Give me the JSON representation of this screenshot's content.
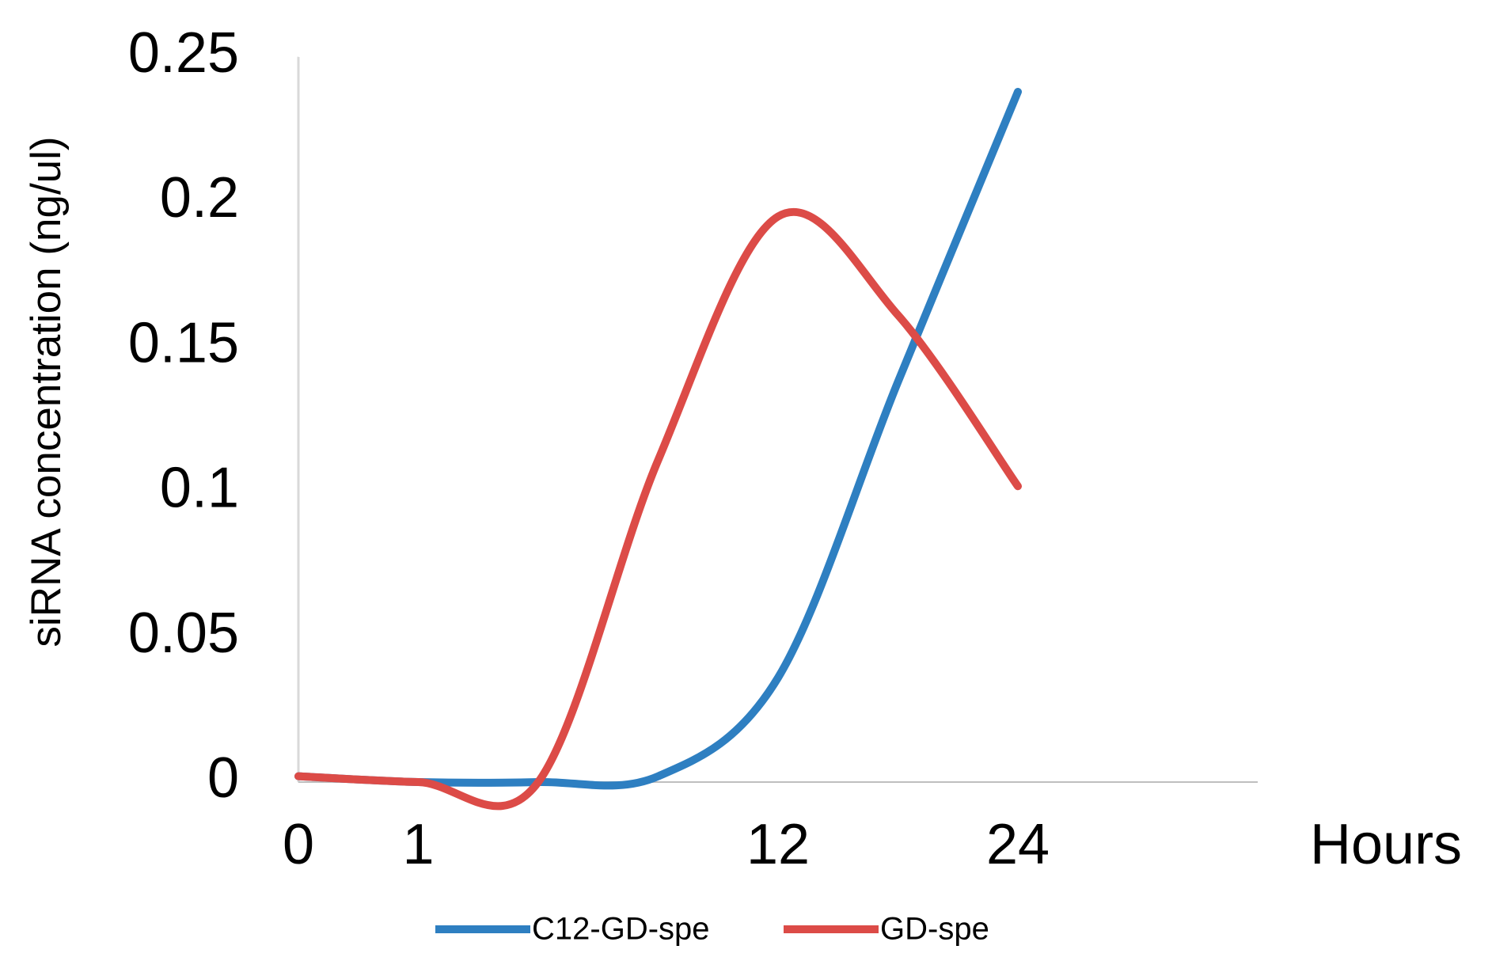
{
  "chart_data": {
    "type": "line",
    "y_label": "siRNA concentration (ng/ul)",
    "x_label": "Hours",
    "categories": [
      "0",
      "1",
      null,
      null,
      "12",
      null,
      "24",
      null
    ],
    "series": [
      {
        "name": "C12-GD-spe",
        "color": "#2e7fc1",
        "values": [
          0.002,
          0,
          0,
          0.002,
          0.036,
          0.138,
          0.238,
          null
        ]
      },
      {
        "name": "GD-spe",
        "color": "#dc4b47",
        "values": [
          0.002,
          0,
          0,
          0.111,
          0.195,
          0.161,
          0.102,
          null
        ]
      }
    ],
    "ylim": [
      0,
      0.25
    ],
    "yticks": [
      0,
      0.05,
      0.1,
      0.15,
      0.2,
      0.25
    ],
    "grid": false,
    "legend": "bottom"
  }
}
